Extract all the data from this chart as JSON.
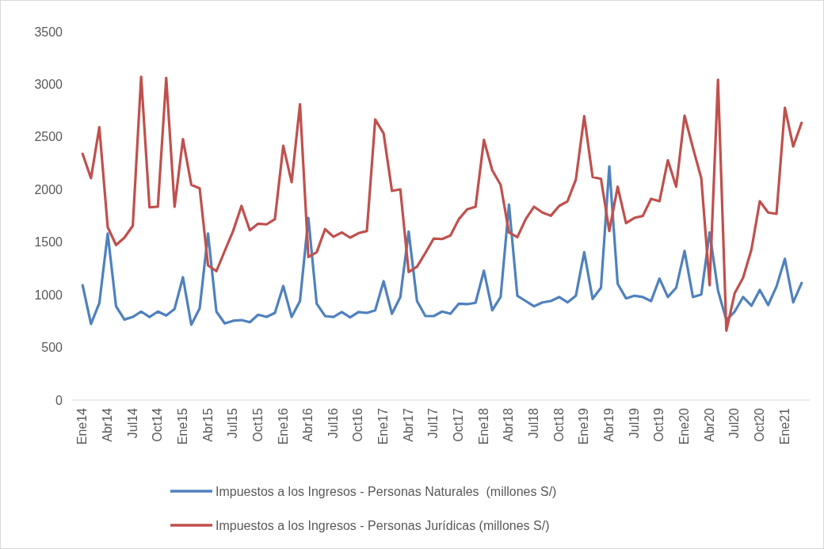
{
  "chart_data": {
    "type": "line",
    "categories": [
      "Ene14",
      null,
      null,
      "Abr14",
      null,
      null,
      "Jul14",
      null,
      null,
      "Oct14",
      null,
      null,
      "Ene15",
      null,
      null,
      "Abr15",
      null,
      null,
      "Jul15",
      null,
      null,
      "Oct15",
      null,
      null,
      "Ene16",
      null,
      null,
      "Abr16",
      null,
      null,
      "Jul16",
      null,
      null,
      "Oct16",
      null,
      null,
      "Ene17",
      null,
      null,
      "Abr17",
      null,
      null,
      "Jul17",
      null,
      null,
      "Oct17",
      null,
      null,
      "Ene18",
      null,
      null,
      "Abr18",
      null,
      null,
      "Jul18",
      null,
      null,
      "Oct18",
      null,
      null,
      "Ene19",
      null,
      null,
      "Abr19",
      null,
      null,
      "Jul19",
      null,
      null,
      "Oct19",
      null,
      null,
      "Ene20",
      null,
      null,
      "Abr20",
      null,
      null,
      "Jul20",
      null,
      null,
      "Oct20",
      null,
      null,
      "Ene21",
      null,
      null
    ],
    "series": [
      {
        "name": "Impuestos a los Ingresos - Personas Naturales  (millones S/)",
        "color": "#4f81bd",
        "values": [
          1091,
          723,
          921,
          1581,
          891,
          765,
          790,
          841,
          790,
          841,
          803,
          866,
          1167,
          715,
          871,
          1581,
          841,
          728,
          753,
          760,
          740,
          811,
          790,
          828,
          1084,
          790,
          941,
          1731,
          916,
          798,
          790,
          836,
          785,
          836,
          828,
          853,
          1129,
          820,
          979,
          1601,
          941,
          798,
          798,
          841,
          820,
          916,
          911,
          924,
          1229,
          853,
          979,
          1857,
          991,
          941,
          891,
          928,
          941,
          979,
          928,
          991,
          1405,
          961,
          1067,
          2220,
          1104,
          966,
          991,
          979,
          941,
          1154,
          979,
          1067,
          1417,
          979,
          1003,
          1593,
          1041,
          760,
          841,
          979,
          896,
          1046,
          903,
          1079,
          1342,
          928,
          1112
        ]
      },
      {
        "name": "Impuestos a los Ingresos - Personas Jurídicas (millones S/)",
        "color": "#c0504d",
        "values": [
          2339,
          2108,
          2592,
          1643,
          1473,
          1543,
          1656,
          3073,
          1831,
          1837,
          3061,
          1837,
          2479,
          2045,
          2012,
          1280,
          1225,
          1417,
          1606,
          1844,
          1613,
          1676,
          1669,
          1719,
          2416,
          2070,
          2810,
          1360,
          1405,
          1624,
          1551,
          1593,
          1543,
          1586,
          1606,
          2665,
          2534,
          1987,
          2002,
          1217,
          1267,
          1398,
          1535,
          1530,
          1563,
          1719,
          1812,
          1837,
          2471,
          2183,
          2045,
          1593,
          1548,
          1719,
          1837,
          1782,
          1751,
          1844,
          1889,
          2095,
          2697,
          2120,
          2102,
          1606,
          2027,
          1681,
          1731,
          1749,
          1912,
          1889,
          2278,
          2027,
          2702,
          2396,
          2108,
          1091,
          3043,
          660,
          1016,
          1161,
          1430,
          1889,
          1782,
          1769,
          2777,
          2409,
          2634
        ]
      }
    ],
    "ylim": [
      0,
      3500
    ],
    "yticks": [
      0,
      500,
      1000,
      1500,
      2000,
      2500,
      3000,
      3500
    ],
    "grid": false,
    "legend": "bottom",
    "marker": "none",
    "line_style": "solid"
  }
}
